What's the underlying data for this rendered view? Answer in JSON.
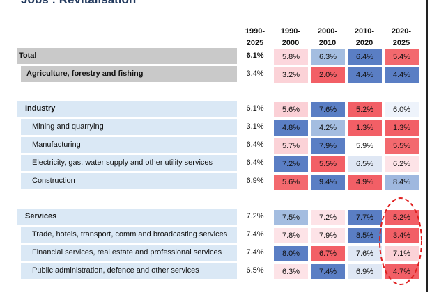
{
  "title": "Jobs : Revitalisation",
  "chart_data": {
    "type": "table",
    "columns": [
      {
        "id": "c0",
        "line1": "1990-",
        "line2": "2025"
      },
      {
        "id": "c1",
        "line1": "1990-",
        "line2": "2000"
      },
      {
        "id": "c2",
        "line1": "2000-",
        "line2": "2010"
      },
      {
        "id": "c3",
        "line1": "2010-",
        "line2": "2020"
      },
      {
        "id": "c4",
        "line1": "2020-",
        "line2": "2025"
      }
    ],
    "rows": [
      {
        "label": "Total",
        "kind": "head",
        "group": "total",
        "bold": true,
        "total": "6.1%",
        "values": [
          "5.8%",
          "6.3%",
          "6.4%",
          "5.4%"
        ],
        "colors": [
          "#fcd7dd",
          "#a4bde0",
          "#5a7ec4",
          "#f3696e"
        ]
      },
      {
        "label": "Agriculture, forestry and fishing",
        "kind": "sub",
        "group": "total",
        "bold": true,
        "total": "3.4%",
        "values": [
          "3.2%",
          "2.0%",
          "4.4%",
          "4.4%"
        ],
        "colors": [
          "#fbd2d7",
          "#f25f66",
          "#5a7ec4",
          "#5a7ec4"
        ]
      },
      {
        "label": "Industry",
        "kind": "head",
        "group": "industry",
        "bold": true,
        "total": "6.1%",
        "values": [
          "5.6%",
          "7.6%",
          "5.2%",
          "6.0%"
        ],
        "colors": [
          "#fbd0d6",
          "#5a7ec4",
          "#f25f66",
          "#eef3fb"
        ]
      },
      {
        "label": "Mining and quarrying",
        "kind": "sub",
        "group": "industry",
        "bold": false,
        "total": "3.1%",
        "values": [
          "4.8%",
          "4.2%",
          "1.3%",
          "1.3%"
        ],
        "colors": [
          "#5a7ec4",
          "#a4bde0",
          "#f25f66",
          "#f25f66"
        ]
      },
      {
        "label": "Manufacturing",
        "kind": "sub",
        "group": "industry",
        "bold": false,
        "total": "6.4%",
        "values": [
          "5.7%",
          "7.9%",
          "5.9%",
          "5.5%"
        ],
        "colors": [
          "#fbd2d7",
          "#5a7ec4",
          "#ffffff",
          "#f3696e"
        ]
      },
      {
        "label": "Electricity, gas, water supply and other utility services",
        "kind": "sub",
        "group": "industry",
        "bold": false,
        "total": "6.4%",
        "values": [
          "7.2%",
          "5.5%",
          "6.5%",
          "6.2%"
        ],
        "colors": [
          "#5a7ec4",
          "#f25f66",
          "#dfe7f4",
          "#fde3e7"
        ]
      },
      {
        "label": "Construction",
        "kind": "sub",
        "group": "industry",
        "bold": false,
        "total": "6.9%",
        "values": [
          "5.6%",
          "9.4%",
          "4.9%",
          "8.4%"
        ],
        "colors": [
          "#f3696e",
          "#5a7ec4",
          "#f25f66",
          "#9fb8df"
        ]
      },
      {
        "label": "Services",
        "kind": "head",
        "group": "services",
        "bold": true,
        "total": "7.2%",
        "values": [
          "7.5%",
          "7.2%",
          "7.7%",
          "5.2%"
        ],
        "colors": [
          "#a4bde0",
          "#fde3e7",
          "#5a7ec4",
          "#f25f66"
        ]
      },
      {
        "label": "Trade, hotels, transport, comm and broadcasting services",
        "kind": "sub",
        "group": "services",
        "bold": false,
        "total": "7.4%",
        "values": [
          "7.8%",
          "7.9%",
          "8.5%",
          "3.4%"
        ],
        "colors": [
          "#fde3e7",
          "#fde3e7",
          "#5a7ec4",
          "#f25f66"
        ]
      },
      {
        "label": "Financial services, real estate and professional services",
        "kind": "sub",
        "group": "services",
        "bold": false,
        "total": "7.4%",
        "values": [
          "8.0%",
          "6.7%",
          "7.6%",
          "7.1%"
        ],
        "colors": [
          "#5a7ec4",
          "#f25f66",
          "#dfe7f4",
          "#fbd2d7"
        ]
      },
      {
        "label": "Public administration, defence and other services",
        "kind": "sub",
        "group": "services",
        "bold": false,
        "total": "6.5%",
        "values": [
          "6.3%",
          "7.4%",
          "6.9%",
          "4.7%"
        ],
        "colors": [
          "#fde3e7",
          "#5a7ec4",
          "#dfe7f4",
          "#f25f66"
        ]
      }
    ],
    "highlight": {
      "column": "2020-2025",
      "shape": "ellipse",
      "style": "dashed",
      "color": "#e02020"
    }
  }
}
